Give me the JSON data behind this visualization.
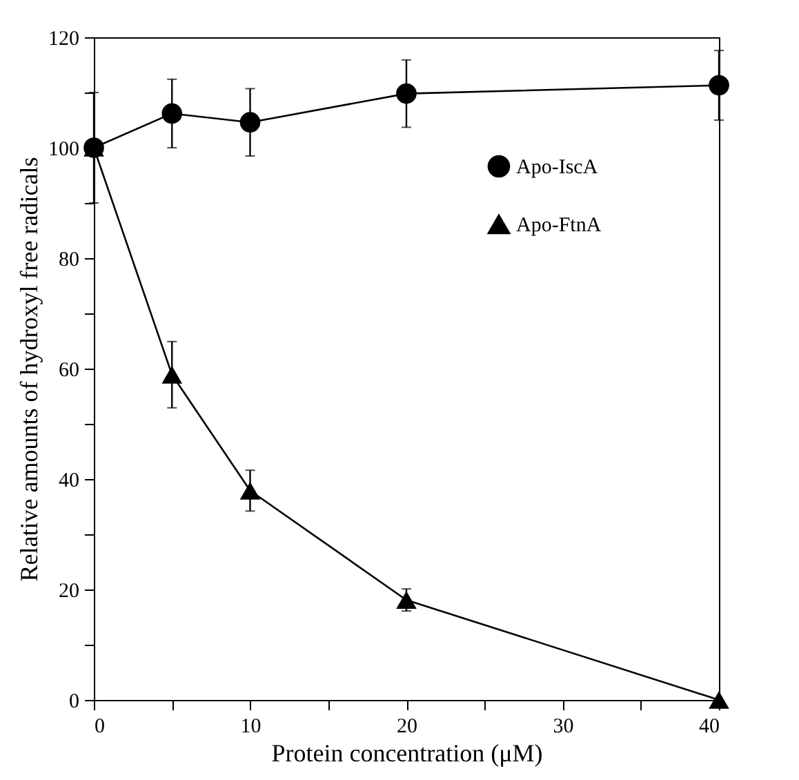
{
  "chart_data": {
    "type": "line",
    "xlabel": "Protein concentration (μM)",
    "ylabel": "Relative amounts of hydroxyl free radicals",
    "x": [
      0,
      5,
      10,
      20,
      40
    ],
    "series": [
      {
        "name": "Apo-IscA",
        "color": "#000000",
        "marker": "circle",
        "values": [
          100,
          106.2,
          104.6,
          109.8,
          111.3
        ],
        "errors": [
          10,
          6.2,
          6.1,
          6.1,
          6.3
        ]
      },
      {
        "name": "Apo-FtnA",
        "color": "#000000",
        "marker": "triangle",
        "values": [
          100,
          58.9,
          37.9,
          18.1,
          0
        ],
        "errors": [
          null,
          6,
          3.7,
          2,
          null
        ]
      }
    ],
    "xlim": [
      0,
      40
    ],
    "xticks": [
      0,
      {
        "value": 5,
        "label": null
      },
      10,
      {
        "value": 15,
        "label": null
      },
      20,
      {
        "value": 25,
        "label": null
      },
      30,
      {
        "value": 35,
        "label": null
      },
      40
    ],
    "ylim": [
      0,
      120
    ],
    "yticks": [
      0,
      {
        "value": 10,
        "label": null
      },
      20,
      {
        "value": 30,
        "label": null
      },
      40,
      {
        "value": 50,
        "label": null
      },
      60,
      {
        "value": 70,
        "label": null
      },
      80,
      {
        "value": 90,
        "label": null
      },
      100,
      {
        "value": 110,
        "label": null
      },
      120
    ],
    "grid": false,
    "legend": "right",
    "line_style": "solid"
  }
}
